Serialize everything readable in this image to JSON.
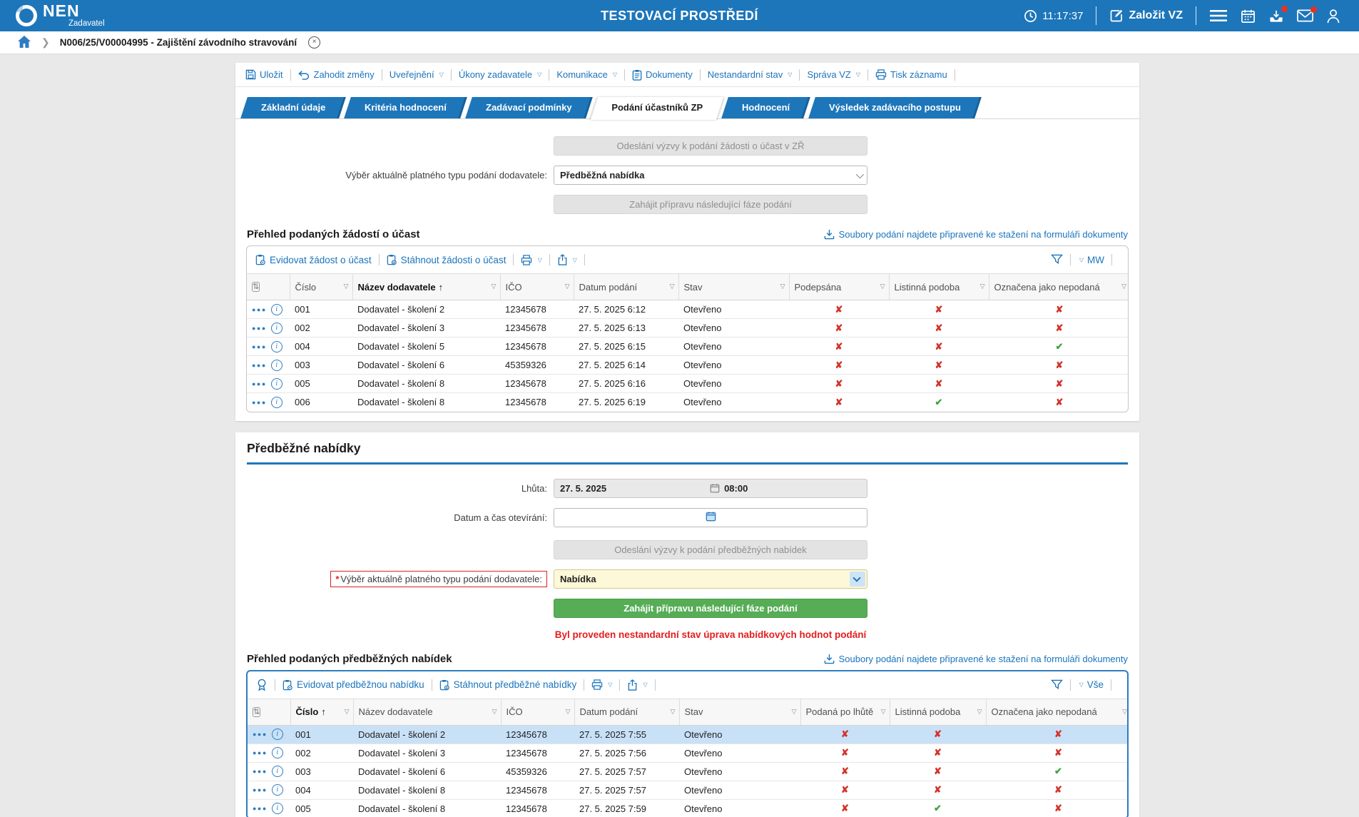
{
  "colors": {
    "accent": "#1d76ba",
    "link": "#1a74bc",
    "error": "#e02020",
    "success": "#3fa344",
    "selected_row": "#c9e1f6",
    "required_field_bg": "#fdf8d7"
  },
  "header": {
    "logo": "NEN",
    "role": "Zadavatel",
    "title": "TESTOVACÍ PROSTŘEDÍ",
    "time": "11:17:37",
    "create_vz": "Založit VZ"
  },
  "breadcrumb": {
    "item": "N006/25/V00004995 - Zajištění závodního stravování",
    "close": "×"
  },
  "toolbar": {
    "items": [
      {
        "label": "Uložit",
        "icon": "save"
      },
      {
        "label": "Zahodit změny",
        "icon": "undo"
      },
      {
        "label": "Uveřejnění",
        "caret": true
      },
      {
        "label": "Úkony zadavatele",
        "caret": true
      },
      {
        "label": "Komunikace",
        "caret": true
      },
      {
        "label": "Dokumenty",
        "icon": "clipboard"
      },
      {
        "label": "Nestandardní stav",
        "caret": true
      },
      {
        "label": "Správa VZ",
        "caret": true
      },
      {
        "label": "Tisk záznamu",
        "icon": "printer"
      }
    ]
  },
  "tabs": [
    {
      "label": "Základní údaje"
    },
    {
      "label": "Kritéria hodnocení"
    },
    {
      "label": "Zadávací podmínky"
    },
    {
      "label": "Podání účastníků ZP",
      "active": true
    },
    {
      "label": "Hodnocení"
    },
    {
      "label": "Výsledek zadávacího postupu"
    }
  ],
  "phase1": {
    "send_btn": "Odeslání výzvy k podání žádosti o účast v ZŘ",
    "select_label": "Výběr aktuálně platného typu podání dodavatele:",
    "select_value": "Předběžná nabídka",
    "start_btn": "Zahájit přípravu následující fáze podání"
  },
  "table1": {
    "title": "Přehled podaných žádostí o účast",
    "files_link": "Soubory podání najdete připravené ke stažení na formuláři dokumenty",
    "action1": "Evidovat žádost o účast",
    "action2": "Stáhnout žádosti o účast",
    "view_label": "MW",
    "columns": [
      {
        "label": "Číslo"
      },
      {
        "label": "Název dodavatele",
        "sorted": "asc"
      },
      {
        "label": "IČO"
      },
      {
        "label": "Datum podání"
      },
      {
        "label": "Stav"
      },
      {
        "label": "Podepsána"
      },
      {
        "label": "Listinná podoba"
      },
      {
        "label": "Označena jako nepodaná"
      }
    ],
    "rows": [
      {
        "cislo": "001",
        "nazev": "Dodavatel - školení 2",
        "ico": "12345678",
        "datum": "27. 5. 2025 6:12",
        "stav": "Otevřeno",
        "flags": [
          "x",
          "x",
          "x"
        ]
      },
      {
        "cislo": "002",
        "nazev": "Dodavatel - školení 3",
        "ico": "12345678",
        "datum": "27. 5. 2025 6:13",
        "stav": "Otevřeno",
        "flags": [
          "x",
          "x",
          "x"
        ]
      },
      {
        "cislo": "004",
        "nazev": "Dodavatel - školení 5",
        "ico": "12345678",
        "datum": "27. 5. 2025 6:15",
        "stav": "Otevřeno",
        "flags": [
          "x",
          "x",
          "v"
        ]
      },
      {
        "cislo": "003",
        "nazev": "Dodavatel - školení 6",
        "ico": "45359326",
        "datum": "27. 5. 2025 6:14",
        "stav": "Otevřeno",
        "flags": [
          "x",
          "x",
          "x"
        ]
      },
      {
        "cislo": "005",
        "nazev": "Dodavatel - školení 8",
        "ico": "12345678",
        "datum": "27. 5. 2025 6:16",
        "stav": "Otevřeno",
        "flags": [
          "x",
          "x",
          "x"
        ]
      },
      {
        "cislo": "006",
        "nazev": "Dodavatel - školení 8",
        "ico": "12345678",
        "datum": "27. 5. 2025 6:19",
        "stav": "Otevřeno",
        "flags": [
          "x",
          "v",
          "x"
        ]
      }
    ]
  },
  "prebid": {
    "heading": "Předběžné nabídky",
    "deadline_label": "Lhůta:",
    "deadline_date": "27. 5. 2025",
    "deadline_time": "08:00",
    "opening_label": "Datum a čas otevírání:",
    "opening_value": "",
    "send_btn": "Odeslání výzvy k podání předběžných nabídek",
    "required_mark": "*",
    "select_label": "Výběr aktuálně platného typu podání dodavatele:",
    "select_value": "Nabídka",
    "start_btn": "Zahájit přípravu následující fáze podání",
    "warning": "Byl proveden nestandardní stav úprava nabídkových hodnot podání"
  },
  "table2": {
    "title": "Přehled podaných předběžných nabídek",
    "files_link": "Soubory podání najdete připravené ke stažení na formuláři dokumenty",
    "action1": "Evidovat předběžnou nabídku",
    "action2": "Stáhnout předběžné nabídky",
    "view_label": "Vše",
    "columns": [
      {
        "label": "Číslo",
        "sorted": "asc"
      },
      {
        "label": "Název dodavatele"
      },
      {
        "label": "IČO"
      },
      {
        "label": "Datum podání"
      },
      {
        "label": "Stav"
      },
      {
        "label": "Podaná po lhůtě"
      },
      {
        "label": "Listinná podoba"
      },
      {
        "label": "Označena jako nepodaná"
      }
    ],
    "rows": [
      {
        "cislo": "001",
        "nazev": "Dodavatel - školení 2",
        "ico": "12345678",
        "datum": "27. 5. 2025 7:55",
        "stav": "Otevřeno",
        "flags": [
          "x",
          "x",
          "x"
        ],
        "selected": true
      },
      {
        "cislo": "002",
        "nazev": "Dodavatel - školení 3",
        "ico": "12345678",
        "datum": "27. 5. 2025 7:56",
        "stav": "Otevřeno",
        "flags": [
          "x",
          "x",
          "x"
        ]
      },
      {
        "cislo": "003",
        "nazev": "Dodavatel - školení 6",
        "ico": "45359326",
        "datum": "27. 5. 2025 7:57",
        "stav": "Otevřeno",
        "flags": [
          "x",
          "x",
          "v"
        ]
      },
      {
        "cislo": "004",
        "nazev": "Dodavatel - školení 8",
        "ico": "12345678",
        "datum": "27. 5. 2025 7:57",
        "stav": "Otevřeno",
        "flags": [
          "x",
          "x",
          "x"
        ]
      },
      {
        "cislo": "005",
        "nazev": "Dodavatel - školení 8",
        "ico": "12345678",
        "datum": "27. 5. 2025 7:59",
        "stav": "Otevřeno",
        "flags": [
          "x",
          "v",
          "x"
        ]
      }
    ]
  }
}
